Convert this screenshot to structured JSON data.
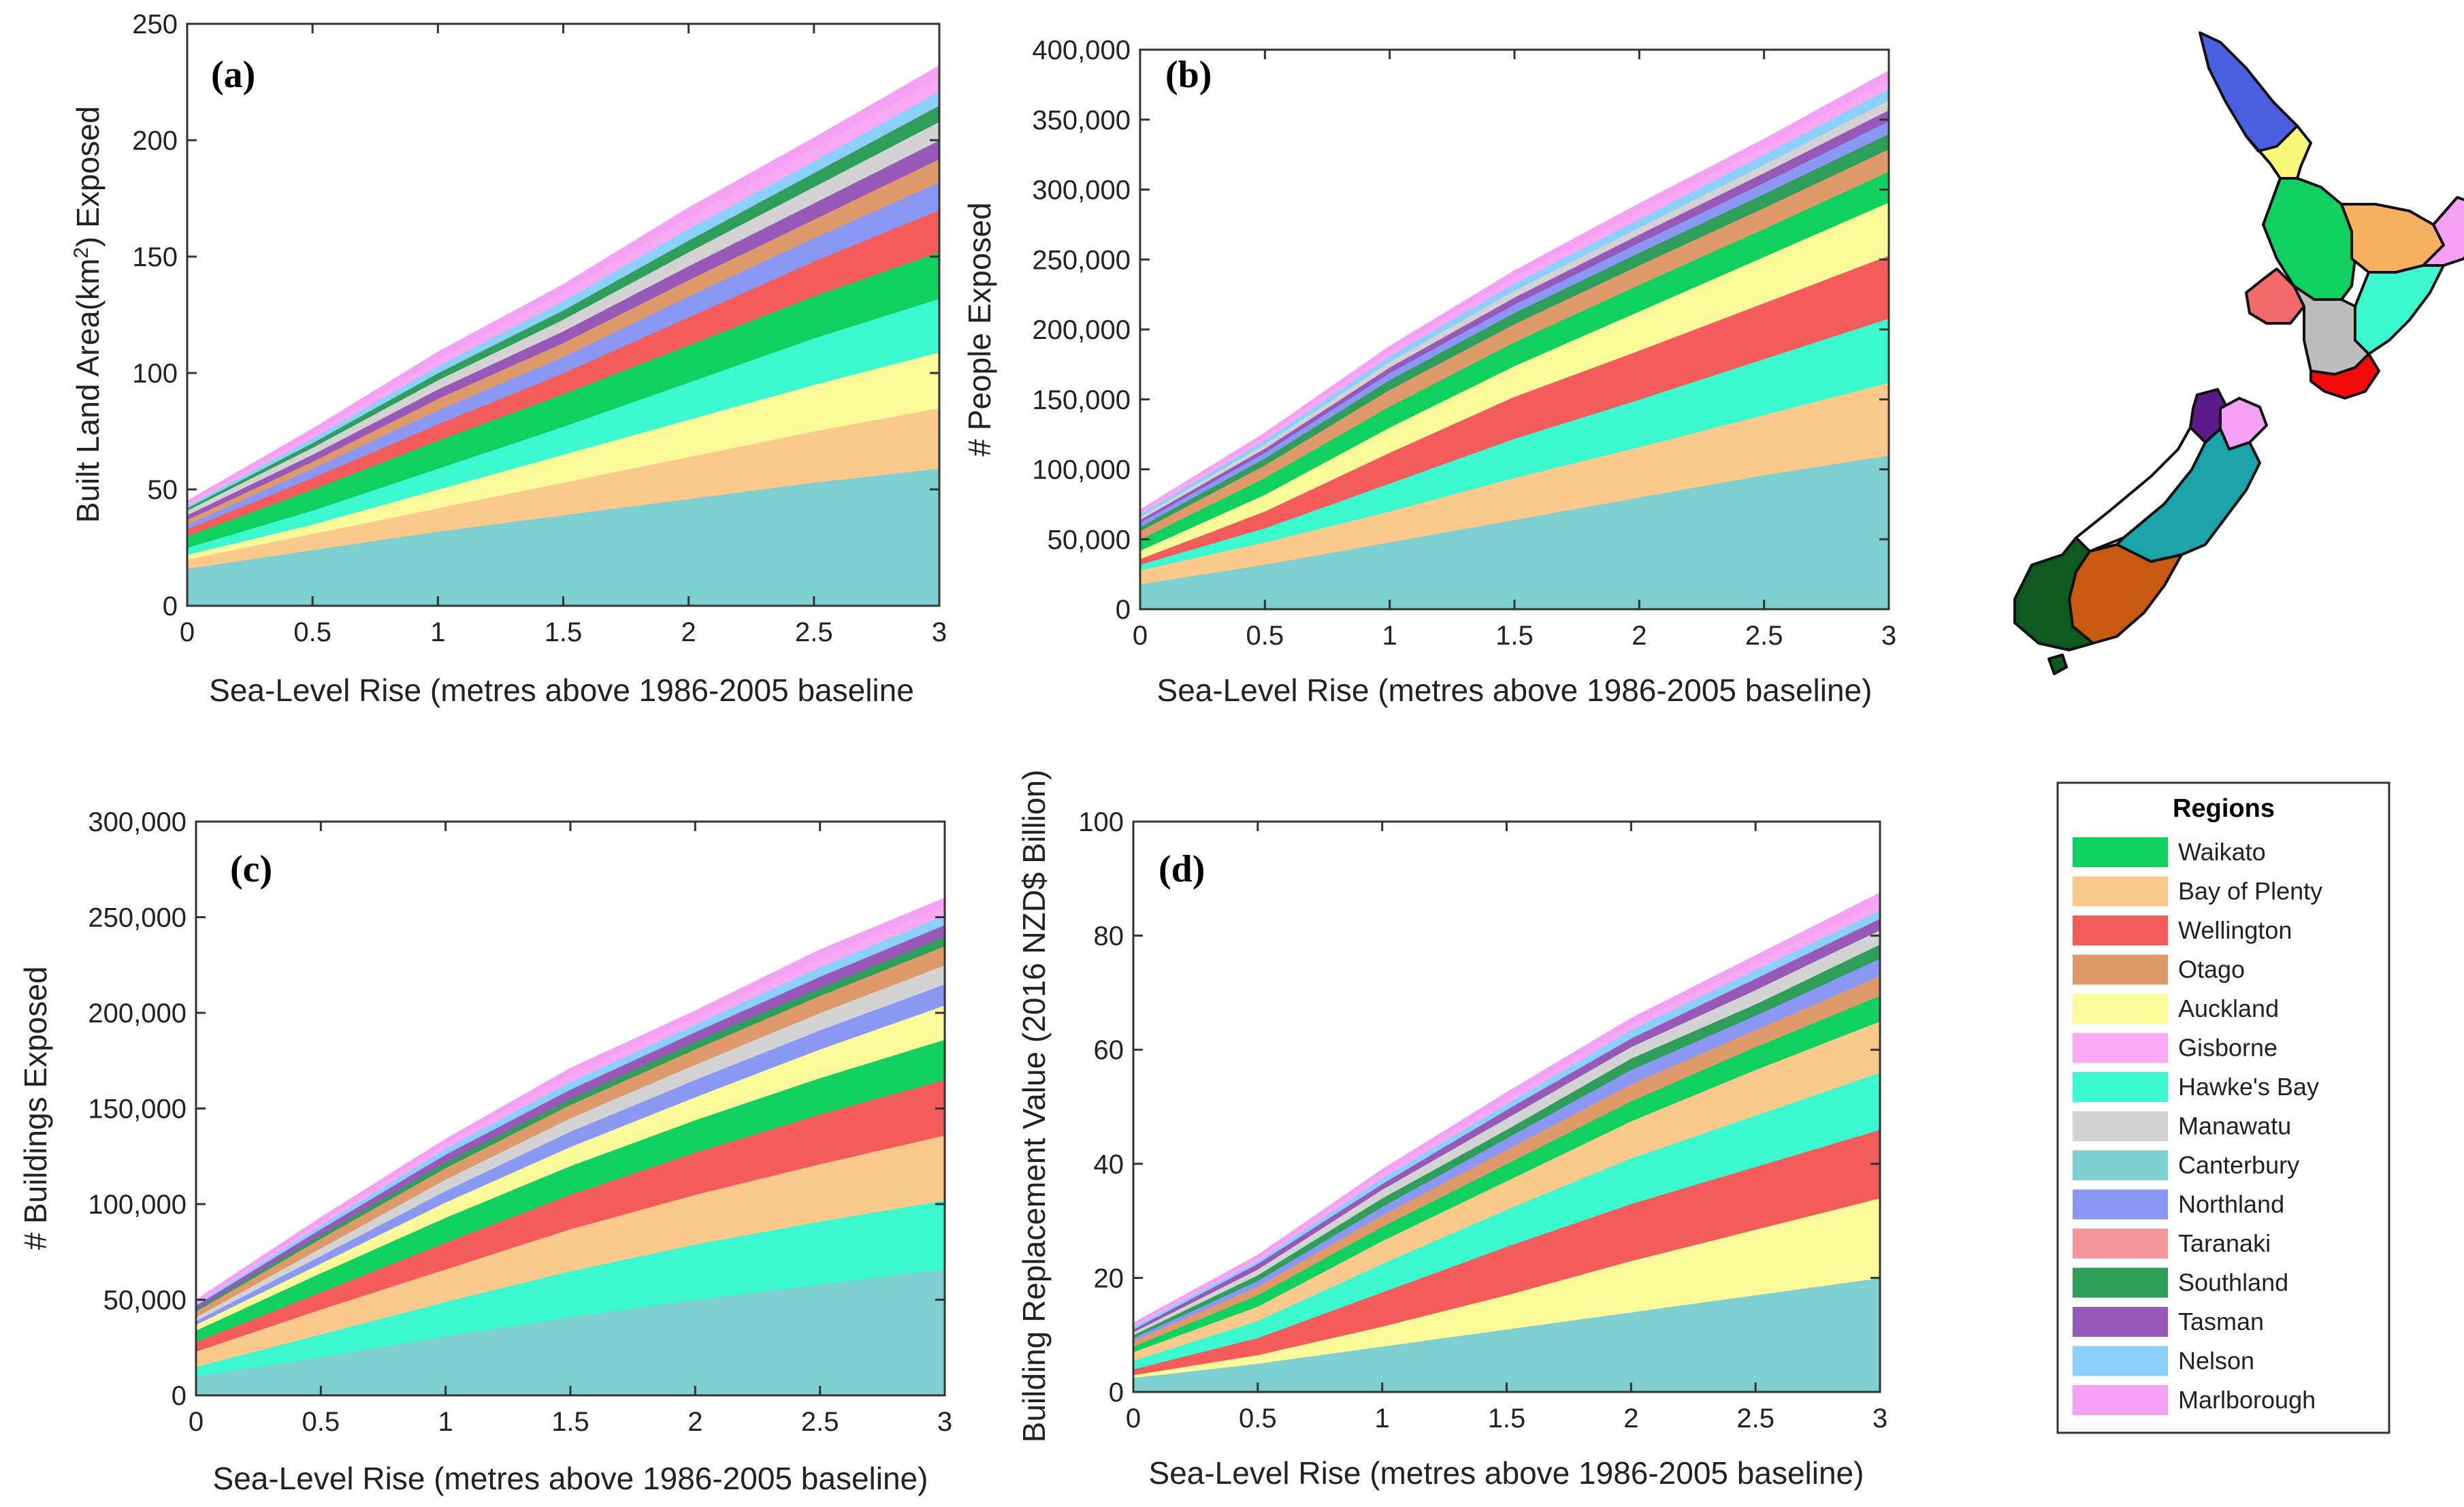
{
  "x_ticks": [
    "0",
    "0.5",
    "1",
    "1.5",
    "2",
    "2.5",
    "3"
  ],
  "panels": [
    {
      "label": "(a)",
      "xlabel": "Sea-Level Rise (metres above 1986-2005 baseline",
      "ylabel_main": "Built Land Area(km",
      "ylabel_sup": "2",
      "ylabel_end": ") Exposed",
      "yticks": [
        "0",
        "50",
        "100",
        "150",
        "200",
        "250"
      ]
    },
    {
      "label": "(b)",
      "xlabel": "Sea-Level Rise (metres above 1986-2005 baseline)",
      "ylabel": "# People Exposed",
      "yticks": [
        "0",
        "50,000",
        "100,000",
        "150,000",
        "200,000",
        "250,000",
        "300,000",
        "350,000",
        "400,000"
      ]
    },
    {
      "label": "(c)",
      "xlabel": "Sea-Level Rise (metres above 1986-2005 baseline)",
      "ylabel": "# Buildings Exposed",
      "yticks": [
        "0",
        "50,000",
        "100,000",
        "150,000",
        "200,000",
        "250,000",
        "300,000"
      ]
    },
    {
      "label": "(d)",
      "xlabel": "Sea-Level Rise (metres above 1986-2005 baseline)",
      "ylabel": "Building Replacement Value (2016 NZD$ Billion)",
      "yticks": [
        "0",
        "20",
        "40",
        "60",
        "80",
        "100"
      ]
    }
  ],
  "legend": {
    "title": "Regions",
    "items": [
      {
        "name": "Waikato",
        "color": "#10d060"
      },
      {
        "name": "Bay of Plenty",
        "color": "#fcc98c"
      },
      {
        "name": "Wellington",
        "color": "#f45b5b"
      },
      {
        "name": "Otago",
        "color": "#de9a6a"
      },
      {
        "name": "Auckland",
        "color": "#fafa9a"
      },
      {
        "name": "Gisborne",
        "color": "#f9a8f4"
      },
      {
        "name": "Hawke's Bay",
        "color": "#3cf8cf"
      },
      {
        "name": "Manawatu",
        "color": "#d3d3d3"
      },
      {
        "name": "Canterbury",
        "color": "#7ecfcf"
      },
      {
        "name": "Northland",
        "color": "#8a98f4"
      },
      {
        "name": "Taranaki",
        "color": "#f4969c"
      },
      {
        "name": "Southland",
        "color": "#2e9e5a"
      },
      {
        "name": "Tasman",
        "color": "#9758b8"
      },
      {
        "name": "Nelson",
        "color": "#8ad0fa"
      },
      {
        "name": "Marlborough",
        "color": "#f4a0f4"
      }
    ]
  },
  "chart_data": [
    {
      "type": "area",
      "title": "(a)",
      "xlabel": "Sea-Level Rise (metres above 1986-2005 baseline",
      "ylabel": "Built Land Area(km2) Exposed",
      "xlim": [
        0,
        3
      ],
      "ylim": [
        0,
        250
      ],
      "x": [
        0,
        0.5,
        1,
        1.5,
        2,
        2.5,
        3
      ],
      "series": [
        {
          "name": "Canterbury",
          "values": [
            16,
            24,
            32,
            39,
            46,
            53,
            59
          ]
        },
        {
          "name": "Bay of Plenty",
          "values": [
            4,
            7,
            10,
            14,
            18,
            22,
            26
          ]
        },
        {
          "name": "Auckland",
          "values": [
            2,
            4,
            8,
            12,
            16,
            20,
            24
          ]
        },
        {
          "name": "Hawke's Bay",
          "values": [
            3,
            6,
            9,
            12,
            16,
            20,
            23
          ]
        },
        {
          "name": "Waikato",
          "values": [
            5,
            9,
            12,
            14,
            16,
            18,
            20
          ]
        },
        {
          "name": "Wellington",
          "values": [
            3,
            5,
            7,
            9,
            12,
            15,
            18
          ]
        },
        {
          "name": "Northland",
          "values": [
            2,
            4,
            6,
            7,
            9,
            10,
            12
          ]
        },
        {
          "name": "Otago",
          "values": [
            2,
            3,
            5,
            6,
            7,
            8,
            10
          ]
        },
        {
          "name": "Tasman",
          "values": [
            2,
            3,
            4,
            5,
            6,
            7,
            8
          ]
        },
        {
          "name": "Manawatu",
          "values": [
            2,
            3,
            4,
            5,
            6,
            7,
            8
          ]
        },
        {
          "name": "Southland",
          "values": [
            1,
            2,
            3,
            4,
            5,
            6,
            7
          ]
        },
        {
          "name": "Nelson",
          "values": [
            1,
            2,
            3,
            4,
            5,
            5,
            6
          ]
        },
        {
          "name": "Gisborne",
          "values": [
            1,
            2,
            3,
            4,
            5,
            6,
            6
          ]
        },
        {
          "name": "Marlborough",
          "values": [
            1,
            2,
            3,
            3,
            4,
            4,
            5
          ]
        }
      ]
    },
    {
      "type": "area",
      "title": "(b)",
      "xlabel": "Sea-Level Rise (metres above 1986-2005 baseline)",
      "ylabel": "# People Exposed",
      "xlim": [
        0,
        3
      ],
      "ylim": [
        0,
        400000
      ],
      "x": [
        0,
        0.5,
        1,
        1.5,
        2,
        2.5,
        3
      ],
      "series": [
        {
          "name": "Canterbury",
          "values": [
            18000,
            32000,
            48000,
            64000,
            80000,
            96000,
            110000
          ]
        },
        {
          "name": "Bay of Plenty",
          "values": [
            10000,
            16000,
            22000,
            30000,
            36000,
            43000,
            52000
          ]
        },
        {
          "name": "Hawke's Bay",
          "values": [
            4000,
            10000,
            20000,
            28000,
            34000,
            40000,
            46000
          ]
        },
        {
          "name": "Wellington",
          "values": [
            4000,
            12000,
            22000,
            30000,
            35000,
            40000,
            45000
          ]
        },
        {
          "name": "Auckland",
          "values": [
            6000,
            12000,
            18000,
            22000,
            28000,
            33000,
            38000
          ]
        },
        {
          "name": "Waikato",
          "values": [
            8000,
            12000,
            15000,
            17000,
            19000,
            20000,
            22000
          ]
        },
        {
          "name": "Otago",
          "values": [
            6000,
            9000,
            12000,
            13000,
            14000,
            15000,
            16000
          ]
        },
        {
          "name": "Southland",
          "values": [
            3000,
            5000,
            7000,
            8000,
            9000,
            10000,
            11000
          ]
        },
        {
          "name": "Northland",
          "values": [
            3000,
            4000,
            5000,
            6000,
            7000,
            8000,
            9000
          ]
        },
        {
          "name": "Tasman",
          "values": [
            2000,
            3000,
            4000,
            5000,
            6000,
            7000,
            8000
          ]
        },
        {
          "name": "Manawatu",
          "values": [
            2000,
            3000,
            4000,
            5000,
            5000,
            6000,
            7000
          ]
        },
        {
          "name": "Nelson",
          "values": [
            2000,
            3000,
            4000,
            5000,
            6000,
            7000,
            8000
          ]
        },
        {
          "name": "Gisborne",
          "values": [
            2000,
            3000,
            4000,
            5000,
            6000,
            6000,
            7000
          ]
        },
        {
          "name": "Marlborough",
          "values": [
            1000,
            2000,
            3000,
            4000,
            5000,
            5000,
            6000
          ]
        }
      ]
    },
    {
      "type": "area",
      "title": "(c)",
      "xlabel": "Sea-Level Rise (metres above 1986-2005 baseline)",
      "ylabel": "# Buildings Exposed",
      "xlim": [
        0,
        3
      ],
      "ylim": [
        0,
        300000
      ],
      "x": [
        0,
        0.5,
        1,
        1.5,
        2,
        2.5,
        3
      ],
      "series": [
        {
          "name": "Canterbury",
          "values": [
            10000,
            20000,
            31000,
            41000,
            50000,
            58000,
            66000
          ]
        },
        {
          "name": "Hawke's Bay",
          "values": [
            5000,
            12000,
            18000,
            24000,
            29000,
            33000,
            36000
          ]
        },
        {
          "name": "Bay of Plenty",
          "values": [
            8000,
            13000,
            17000,
            22000,
            26000,
            30000,
            34000
          ]
        },
        {
          "name": "Wellington",
          "values": [
            5000,
            9000,
            14000,
            18000,
            22000,
            26000,
            29000
          ]
        },
        {
          "name": "Waikato",
          "values": [
            6000,
            10000,
            13000,
            15000,
            17000,
            19000,
            21000
          ]
        },
        {
          "name": "Auckland",
          "values": [
            3000,
            5000,
            8000,
            10000,
            12000,
            15000,
            18000
          ]
        },
        {
          "name": "Northland",
          "values": [
            2000,
            4000,
            6000,
            8000,
            9000,
            10000,
            11000
          ]
        },
        {
          "name": "Manawatu",
          "values": [
            2000,
            4000,
            6000,
            7000,
            8000,
            9000,
            10000
          ]
        },
        {
          "name": "Otago",
          "values": [
            3000,
            5000,
            6000,
            7000,
            8000,
            9000,
            10000
          ]
        },
        {
          "name": "Southland",
          "values": [
            1000,
            2000,
            3000,
            3000,
            4000,
            4000,
            5000
          ]
        },
        {
          "name": "Tasman",
          "values": [
            2000,
            3000,
            4000,
            5000,
            5000,
            6000,
            6000
          ]
        },
        {
          "name": "Nelson",
          "values": [
            1000,
            2000,
            3000,
            4000,
            4000,
            5000,
            5000
          ]
        },
        {
          "name": "Gisborne",
          "values": [
            1000,
            2000,
            3000,
            4000,
            4000,
            5000,
            5000
          ]
        },
        {
          "name": "Marlborough",
          "values": [
            1000,
            2000,
            2000,
            3000,
            3000,
            4000,
            4000
          ]
        }
      ]
    },
    {
      "type": "area",
      "title": "(d)",
      "xlabel": "Sea-Level Rise (metres above 1986-2005 baseline)",
      "ylabel": "Building Replacement Value (2016 NZD$ Billion)",
      "xlim": [
        0,
        3
      ],
      "ylim": [
        0,
        100
      ],
      "x": [
        0,
        0.5,
        1,
        1.5,
        2,
        2.5,
        3
      ],
      "series": [
        {
          "name": "Canterbury",
          "values": [
            2.5,
            5,
            8,
            11,
            14,
            17,
            20
          ]
        },
        {
          "name": "Auckland",
          "values": [
            0.5,
            1.5,
            3.5,
            6,
            9,
            11.5,
            14
          ]
        },
        {
          "name": "Wellington",
          "values": [
            1,
            3,
            6,
            8.5,
            10,
            11,
            12
          ]
        },
        {
          "name": "Hawke's Bay",
          "values": [
            1.5,
            3,
            5,
            6.5,
            8,
            9,
            10
          ]
        },
        {
          "name": "Bay of Plenty",
          "values": [
            1.5,
            2.5,
            4,
            5,
            6.5,
            8,
            9
          ]
        },
        {
          "name": "Waikato",
          "values": [
            1,
            2,
            2.5,
            3,
            3.5,
            4,
            4.5
          ]
        },
        {
          "name": "Otago",
          "values": [
            1,
            1.5,
            2,
            2.5,
            3,
            3,
            3.5
          ]
        },
        {
          "name": "Northland",
          "values": [
            0.5,
            1,
            1.5,
            2,
            2.5,
            2.5,
            3
          ]
        },
        {
          "name": "Southland",
          "values": [
            0.5,
            1,
            1.5,
            1.5,
            2,
            2,
            2.5
          ]
        },
        {
          "name": "Manawatu",
          "values": [
            0.5,
            1,
            1.5,
            2,
            2,
            2.5,
            2.5
          ]
        },
        {
          "name": "Tasman",
          "values": [
            0.5,
            1,
            1,
            1.5,
            1.5,
            2,
            2
          ]
        },
        {
          "name": "Nelson",
          "values": [
            0.5,
            0.5,
            1,
            1,
            1.5,
            1.5,
            1.5
          ]
        },
        {
          "name": "Gisborne",
          "values": [
            0.3,
            0.5,
            1,
            1,
            1,
            1.5,
            1.5
          ]
        },
        {
          "name": "Marlborough",
          "values": [
            0.3,
            0.5,
            0.5,
            1,
            1,
            1,
            1.5
          ]
        }
      ]
    }
  ]
}
